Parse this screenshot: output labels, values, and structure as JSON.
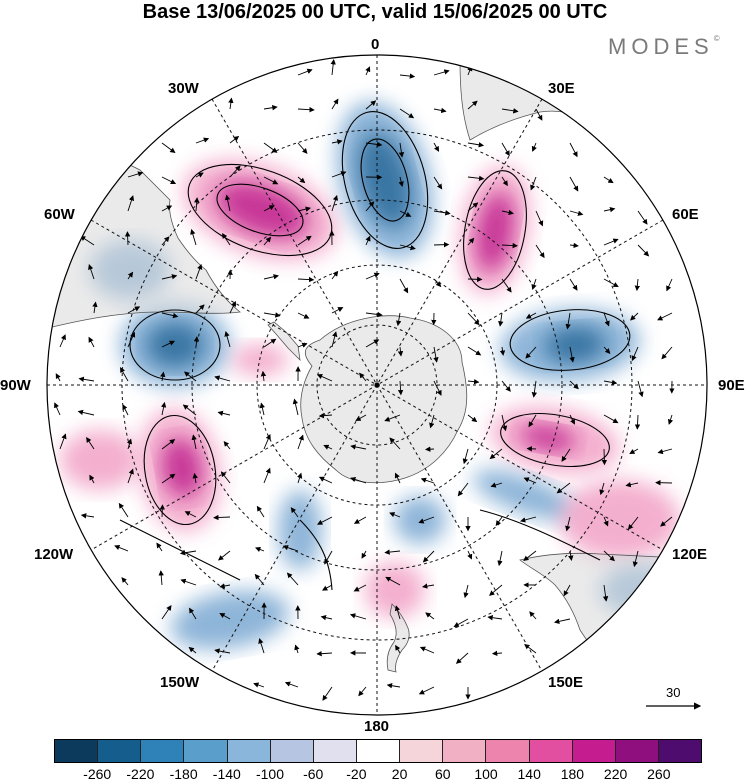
{
  "title": "Base 13/06/2025 00 UTC, valid 15/06/2025 00 UTC",
  "brand": "MODES",
  "brand_mark": "©",
  "map": {
    "projection": "south polar stereographic",
    "longitude_labels": {
      "top": "0",
      "top_right": "30E",
      "right_upper": "60E",
      "right": "90E",
      "right_lower": "120E",
      "bottom_right": "150E",
      "bottom": "180",
      "bottom_left": "150W",
      "left_lower": "120W",
      "left": "90W",
      "left_upper": "60W",
      "top_left": "30W"
    },
    "wind_reference_value": "30",
    "anomaly_colors": {
      "neg_strong": "#2a6a9a",
      "neg": "#7aa8d2",
      "pos_strong": "#c0208e",
      "pos": "#f2a2c6"
    }
  },
  "colorbar": {
    "colors": [
      "#0b3a5c",
      "#145d8c",
      "#2f82b8",
      "#5a9fcb",
      "#8bb6dc",
      "#b6c5e1",
      "#e0e0ee",
      "#ffffff",
      "#f6d5da",
      "#f2b0c4",
      "#ec84ad",
      "#e24fa0",
      "#c51d8f",
      "#8e0f7d",
      "#4e0d6e"
    ],
    "labels": [
      "-260",
      "-220",
      "-180",
      "-140",
      "-100",
      "-60",
      "-20",
      "20",
      "60",
      "100",
      "140",
      "180",
      "220",
      "260"
    ]
  }
}
